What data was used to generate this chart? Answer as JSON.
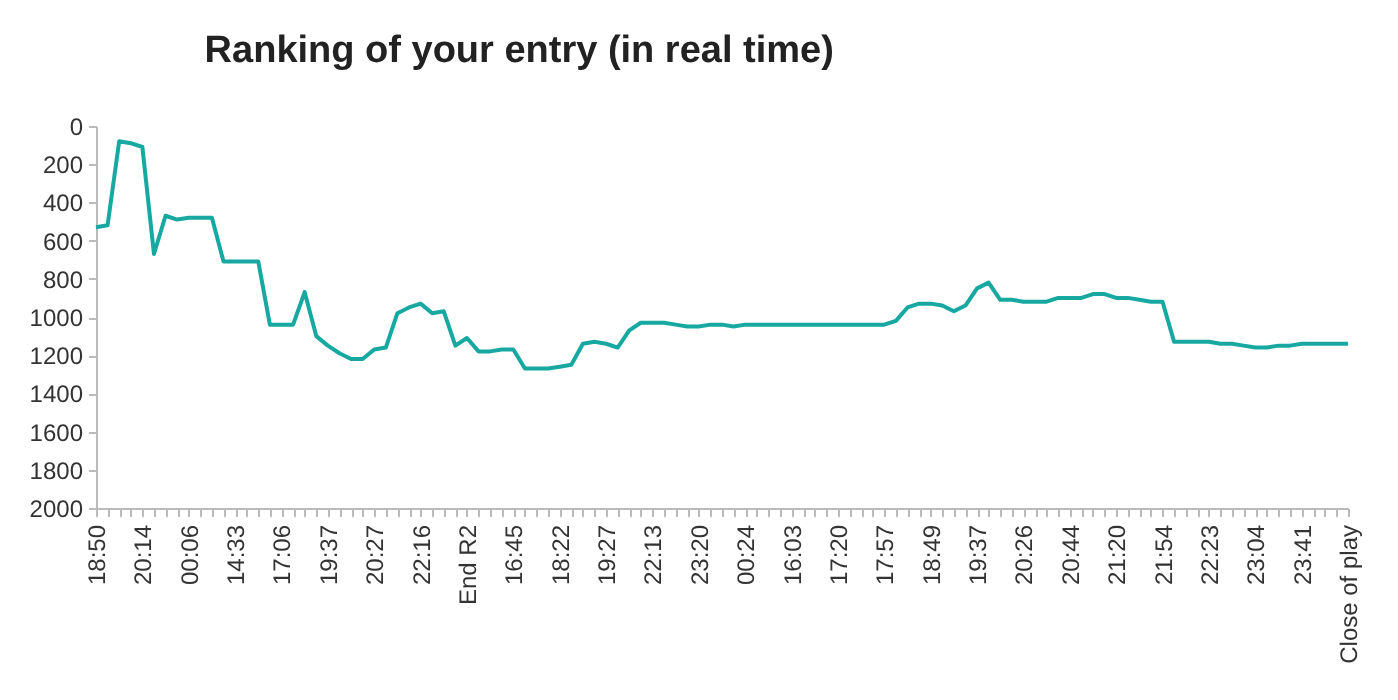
{
  "chart_data": {
    "type": "line",
    "title": "Ranking of your entry (in real time)",
    "categories": [
      "18:50",
      null,
      null,
      null,
      "20:14",
      null,
      null,
      null,
      "00:06",
      null,
      null,
      null,
      "14:33",
      null,
      null,
      null,
      "17:06",
      null,
      null,
      null,
      "19:37",
      null,
      null,
      null,
      "20:27",
      null,
      null,
      null,
      "22:16",
      null,
      null,
      null,
      "End R2",
      null,
      null,
      null,
      "16:45",
      null,
      null,
      null,
      "18:22",
      null,
      null,
      null,
      "19:27",
      null,
      null,
      null,
      "22:13",
      null,
      null,
      null,
      "23:20",
      null,
      null,
      null,
      "00:24",
      null,
      null,
      null,
      "16:03",
      null,
      null,
      null,
      "17:20",
      null,
      null,
      null,
      "17:57",
      null,
      null,
      null,
      "18:49",
      null,
      null,
      null,
      "19:37",
      null,
      null,
      null,
      "20:26",
      null,
      null,
      null,
      "20:44",
      null,
      null,
      null,
      "21:20",
      null,
      null,
      null,
      "21:54",
      null,
      null,
      null,
      "22:23",
      null,
      null,
      null,
      "23:04",
      null,
      null,
      null,
      "23:41",
      null,
      null,
      null,
      "Close of play"
    ],
    "values": [
      530,
      520,
      80,
      90,
      110,
      670,
      470,
      490,
      480,
      480,
      480,
      710,
      710,
      710,
      710,
      1040,
      1040,
      1040,
      870,
      1100,
      1150,
      1190,
      1220,
      1220,
      1170,
      1160,
      980,
      950,
      930,
      980,
      970,
      1150,
      1110,
      1180,
      1180,
      1170,
      1170,
      1270,
      1270,
      1270,
      1260,
      1250,
      1140,
      1130,
      1140,
      1160,
      1070,
      1030,
      1030,
      1030,
      1040,
      1050,
      1050,
      1040,
      1040,
      1050,
      1040,
      1040,
      1040,
      1040,
      1040,
      1040,
      1040,
      1040,
      1040,
      1040,
      1040,
      1040,
      1040,
      1020,
      950,
      930,
      930,
      940,
      970,
      940,
      850,
      820,
      910,
      910,
      920,
      920,
      920,
      900,
      900,
      900,
      880,
      880,
      900,
      900,
      910,
      920,
      920,
      1130,
      1130,
      1130,
      1130,
      1140,
      1140,
      1150,
      1160,
      1160,
      1150,
      1150,
      1140,
      1140,
      1140,
      1140,
      1140
    ],
    "color": "#17a9a1",
    "ylim": [
      2000,
      0
    ],
    "yticks": [
      0,
      200,
      400,
      600,
      800,
      1000,
      1200,
      1400,
      1600,
      1800,
      2000
    ],
    "grid": false
  }
}
